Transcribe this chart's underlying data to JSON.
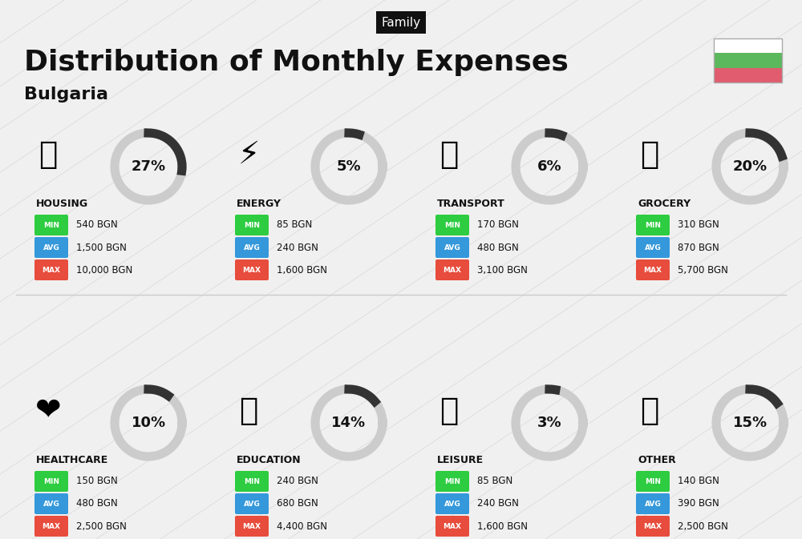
{
  "title": "Distribution of Monthly Expenses",
  "subtitle": "Bulgaria",
  "tag": "Family",
  "bg_color": "#f0f0f0",
  "categories": [
    {
      "name": "HOUSING",
      "pct": 27,
      "min_val": "540 BGN",
      "avg_val": "1,500 BGN",
      "max_val": "10,000 BGN",
      "emoji": "🏗",
      "row": 0,
      "col": 0
    },
    {
      "name": "ENERGY",
      "pct": 5,
      "min_val": "85 BGN",
      "avg_val": "240 BGN",
      "max_val": "1,600 BGN",
      "emoji": "⚡",
      "row": 0,
      "col": 1
    },
    {
      "name": "TRANSPORT",
      "pct": 6,
      "min_val": "170 BGN",
      "avg_val": "480 BGN",
      "max_val": "3,100 BGN",
      "emoji": "🚌",
      "row": 0,
      "col": 2
    },
    {
      "name": "GROCERY",
      "pct": 20,
      "min_val": "310 BGN",
      "avg_val": "870 BGN",
      "max_val": "5,700 BGN",
      "emoji": "🛒",
      "row": 0,
      "col": 3
    },
    {
      "name": "HEALTHCARE",
      "pct": 10,
      "min_val": "150 BGN",
      "avg_val": "480 BGN",
      "max_val": "2,500 BGN",
      "emoji": "❤",
      "row": 1,
      "col": 0
    },
    {
      "name": "EDUCATION",
      "pct": 14,
      "min_val": "240 BGN",
      "avg_val": "680 BGN",
      "max_val": "4,400 BGN",
      "emoji": "🎓",
      "row": 1,
      "col": 1
    },
    {
      "name": "LEISURE",
      "pct": 3,
      "min_val": "85 BGN",
      "avg_val": "240 BGN",
      "max_val": "1,600 BGN",
      "emoji": "🛍",
      "row": 1,
      "col": 2
    },
    {
      "name": "OTHER",
      "pct": 15,
      "min_val": "140 BGN",
      "avg_val": "390 BGN",
      "max_val": "2,500 BGN",
      "emoji": "💰",
      "row": 1,
      "col": 3
    }
  ],
  "min_color": "#2ecc40",
  "avg_color": "#3498db",
  "max_color": "#e74c3c",
  "label_color": "#ffffff",
  "ring_color": "#333333",
  "ring_bg_color": "#cccccc",
  "flag_green": "#5cb85c",
  "flag_red": "#e05c6e"
}
